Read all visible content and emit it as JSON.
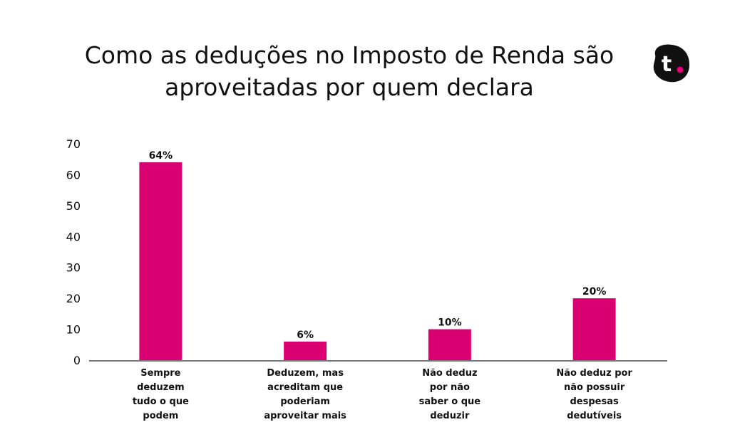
{
  "chart_data": {
    "type": "bar",
    "title": "Como as deduções no Imposto de Renda são aproveitadas por quem declara",
    "title_lines": [
      "Como as deduções no Imposto de Renda são",
      "aproveitadas por quem declara"
    ],
    "categories": [
      "Sempre deduzem tudo o que podem",
      "Deduzem, mas acreditam que poderiam aproveitar mais",
      "Não deduz por não saber o que deduzir",
      "Não deduz por não possuir despesas dedutíveis"
    ],
    "category_lines": [
      [
        "Sempre",
        "deduzem",
        "tudo o que",
        "podem"
      ],
      [
        "Deduzem, mas",
        "acreditam que",
        "poderiam",
        "aproveitar mais"
      ],
      [
        "Não deduz",
        "por não",
        "saber o que",
        "deduzir"
      ],
      [
        "Não deduz por",
        "não possuir",
        "despesas",
        "dedutíveis"
      ]
    ],
    "values": [
      64,
      6,
      10,
      20
    ],
    "data_labels": [
      "64%",
      "6%",
      "10%",
      "20%"
    ],
    "yticks": [
      "0",
      "10",
      "20",
      "30",
      "40",
      "50",
      "60",
      "70"
    ],
    "ylim": [
      0,
      70
    ],
    "grid": false,
    "legend": "none",
    "bar_color": "#DB0071",
    "axis_color": "#777777"
  },
  "logo": {
    "icon": "t-logo-icon",
    "letter": "t",
    "bg_color": "#111111",
    "dot_color": "#E6007E"
  }
}
